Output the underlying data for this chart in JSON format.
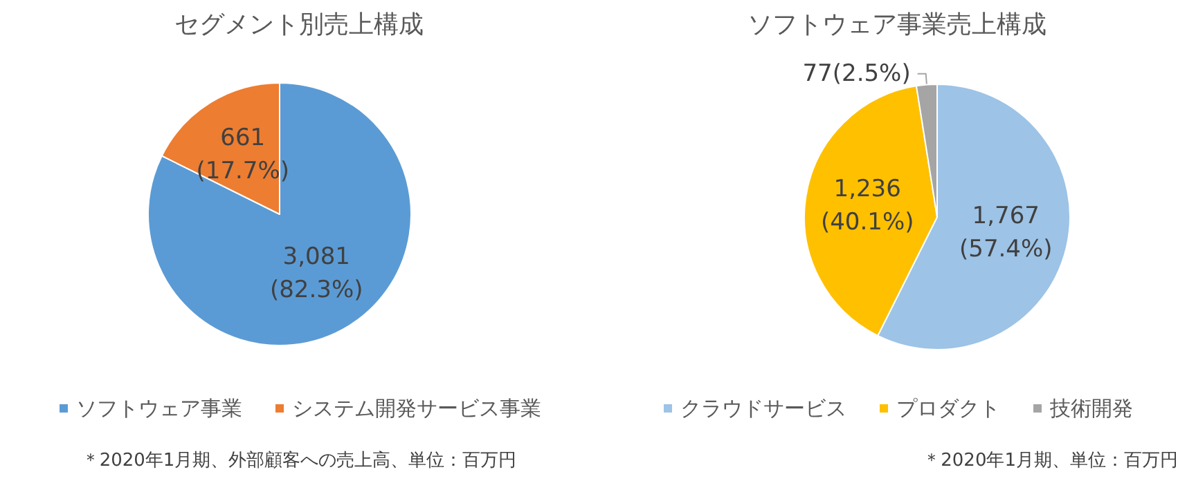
{
  "chart_data": [
    {
      "type": "pie",
      "title": "セグメント別売上構成",
      "categories": [
        "ソフトウェア事業",
        "システム開発サービス事業"
      ],
      "values": [
        3081,
        661
      ],
      "colors": [
        "#5b9bd5",
        "#ed7d31"
      ],
      "value_labels": [
        "3,081 (82.3%)",
        "661 (17.7%)"
      ],
      "legend": "bottom",
      "annotations": [
        "＊2020年1月期、外部顧客への売上高、単位：百万円"
      ]
    },
    {
      "type": "pie",
      "title": "ソフトウェア事業売上構成",
      "categories": [
        "クラウドサービス",
        "プロダクト",
        "技術開発"
      ],
      "values": [
        1767,
        1236,
        77
      ],
      "colors": [
        "#9dc3e6",
        "#ffc000",
        "#a5a5a5"
      ],
      "value_labels": [
        "1,767 (57.4%)",
        "1,236 (40.1%)",
        "77(2.5%)"
      ],
      "legend": "bottom",
      "annotations": [
        "＊2020年1月期、単位：百万円"
      ]
    }
  ]
}
